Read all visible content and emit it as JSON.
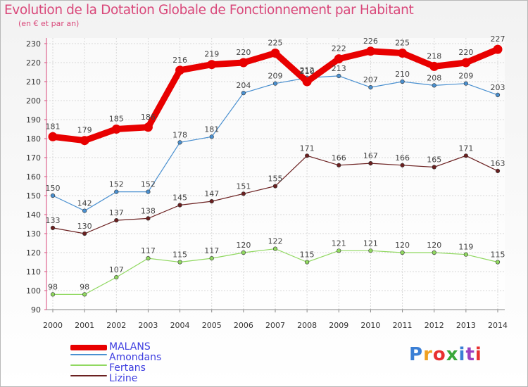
{
  "title": "Evolution de la Dotation Globale de Fonctionnement par Habitant",
  "subtitle": "(en € et par an)",
  "logo": {
    "text": "Proxiti",
    "colors": [
      "#3a7fd5",
      "#f0a020",
      "#e83030",
      "#3aa83a",
      "#3a7fd5",
      "#9b40c0",
      "#e83030"
    ]
  },
  "chart_data": {
    "type": "line",
    "title": "Evolution de la Dotation Globale de Fonctionnement par Habitant",
    "subtitle": "(en € et par an)",
    "x": [
      2000,
      2001,
      2002,
      2003,
      2004,
      2005,
      2006,
      2007,
      2008,
      2009,
      2010,
      2011,
      2012,
      2013,
      2014
    ],
    "ylim": [
      90,
      230
    ],
    "yticks": [
      90,
      100,
      110,
      120,
      130,
      140,
      150,
      160,
      170,
      180,
      190,
      200,
      210,
      220,
      230
    ],
    "grid": true,
    "legend_position": "bottom-left",
    "series": [
      {
        "name": "MALANS",
        "color": "#e80000",
        "values": [
          181,
          179,
          185,
          186,
          216,
          219,
          220,
          225,
          210,
          222,
          226,
          225,
          218,
          220,
          227
        ]
      },
      {
        "name": "Amondans",
        "color": "#4a90d0",
        "values": [
          150,
          142,
          152,
          152,
          178,
          181,
          204,
          209,
          212,
          213,
          207,
          210,
          208,
          209,
          203
        ]
      },
      {
        "name": "Fertans",
        "color": "#90d860",
        "values": [
          98,
          98,
          107,
          117,
          115,
          117,
          120,
          122,
          115,
          121,
          121,
          120,
          120,
          119,
          115
        ]
      },
      {
        "name": "Lizine",
        "color": "#6b2020",
        "values": [
          133,
          130,
          137,
          138,
          145,
          147,
          151,
          155,
          171,
          166,
          167,
          166,
          165,
          171,
          163
        ]
      }
    ]
  }
}
